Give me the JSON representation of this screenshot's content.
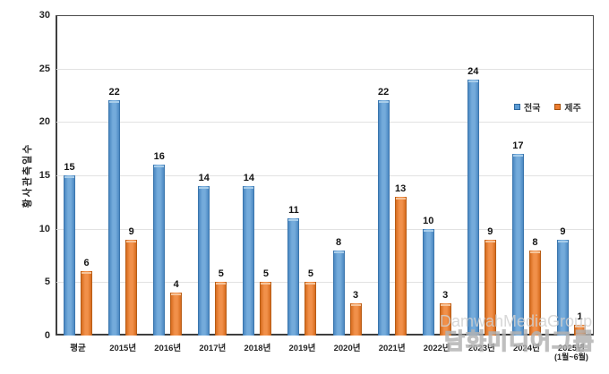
{
  "chart_data": {
    "type": "bar",
    "title": "",
    "ylabel": "황사관측일수",
    "xlabel": "",
    "ylim": [
      0,
      30
    ],
    "yticks": [
      0,
      5,
      10,
      15,
      20,
      25,
      30
    ],
    "grid": true,
    "legend_position": "inside-top-right",
    "categories": [
      "평균",
      "2015년",
      "2016년",
      "2017년",
      "2018년",
      "2019년",
      "2020년",
      "2021년",
      "2022년",
      "2023년",
      "2024년",
      "2025년"
    ],
    "category_sublabels": [
      "",
      "",
      "",
      "",
      "",
      "",
      "",
      "",
      "",
      "",
      "",
      "(1월~6월)"
    ],
    "series": [
      {
        "name": "전국",
        "color": "#5b9bd5",
        "edge_color": "#2f689e",
        "values": [
          15,
          22,
          16,
          14,
          14,
          11,
          8,
          22,
          10,
          24,
          17,
          9
        ]
      },
      {
        "name": "제주",
        "color": "#ed7d31",
        "edge_color": "#a4520e",
        "values": [
          6,
          9,
          4,
          5,
          5,
          5,
          3,
          13,
          3,
          9,
          8,
          1
        ]
      }
    ]
  },
  "watermark": {
    "latin": "DamwahMediaGroup",
    "korean": "담화미디어그룹"
  }
}
